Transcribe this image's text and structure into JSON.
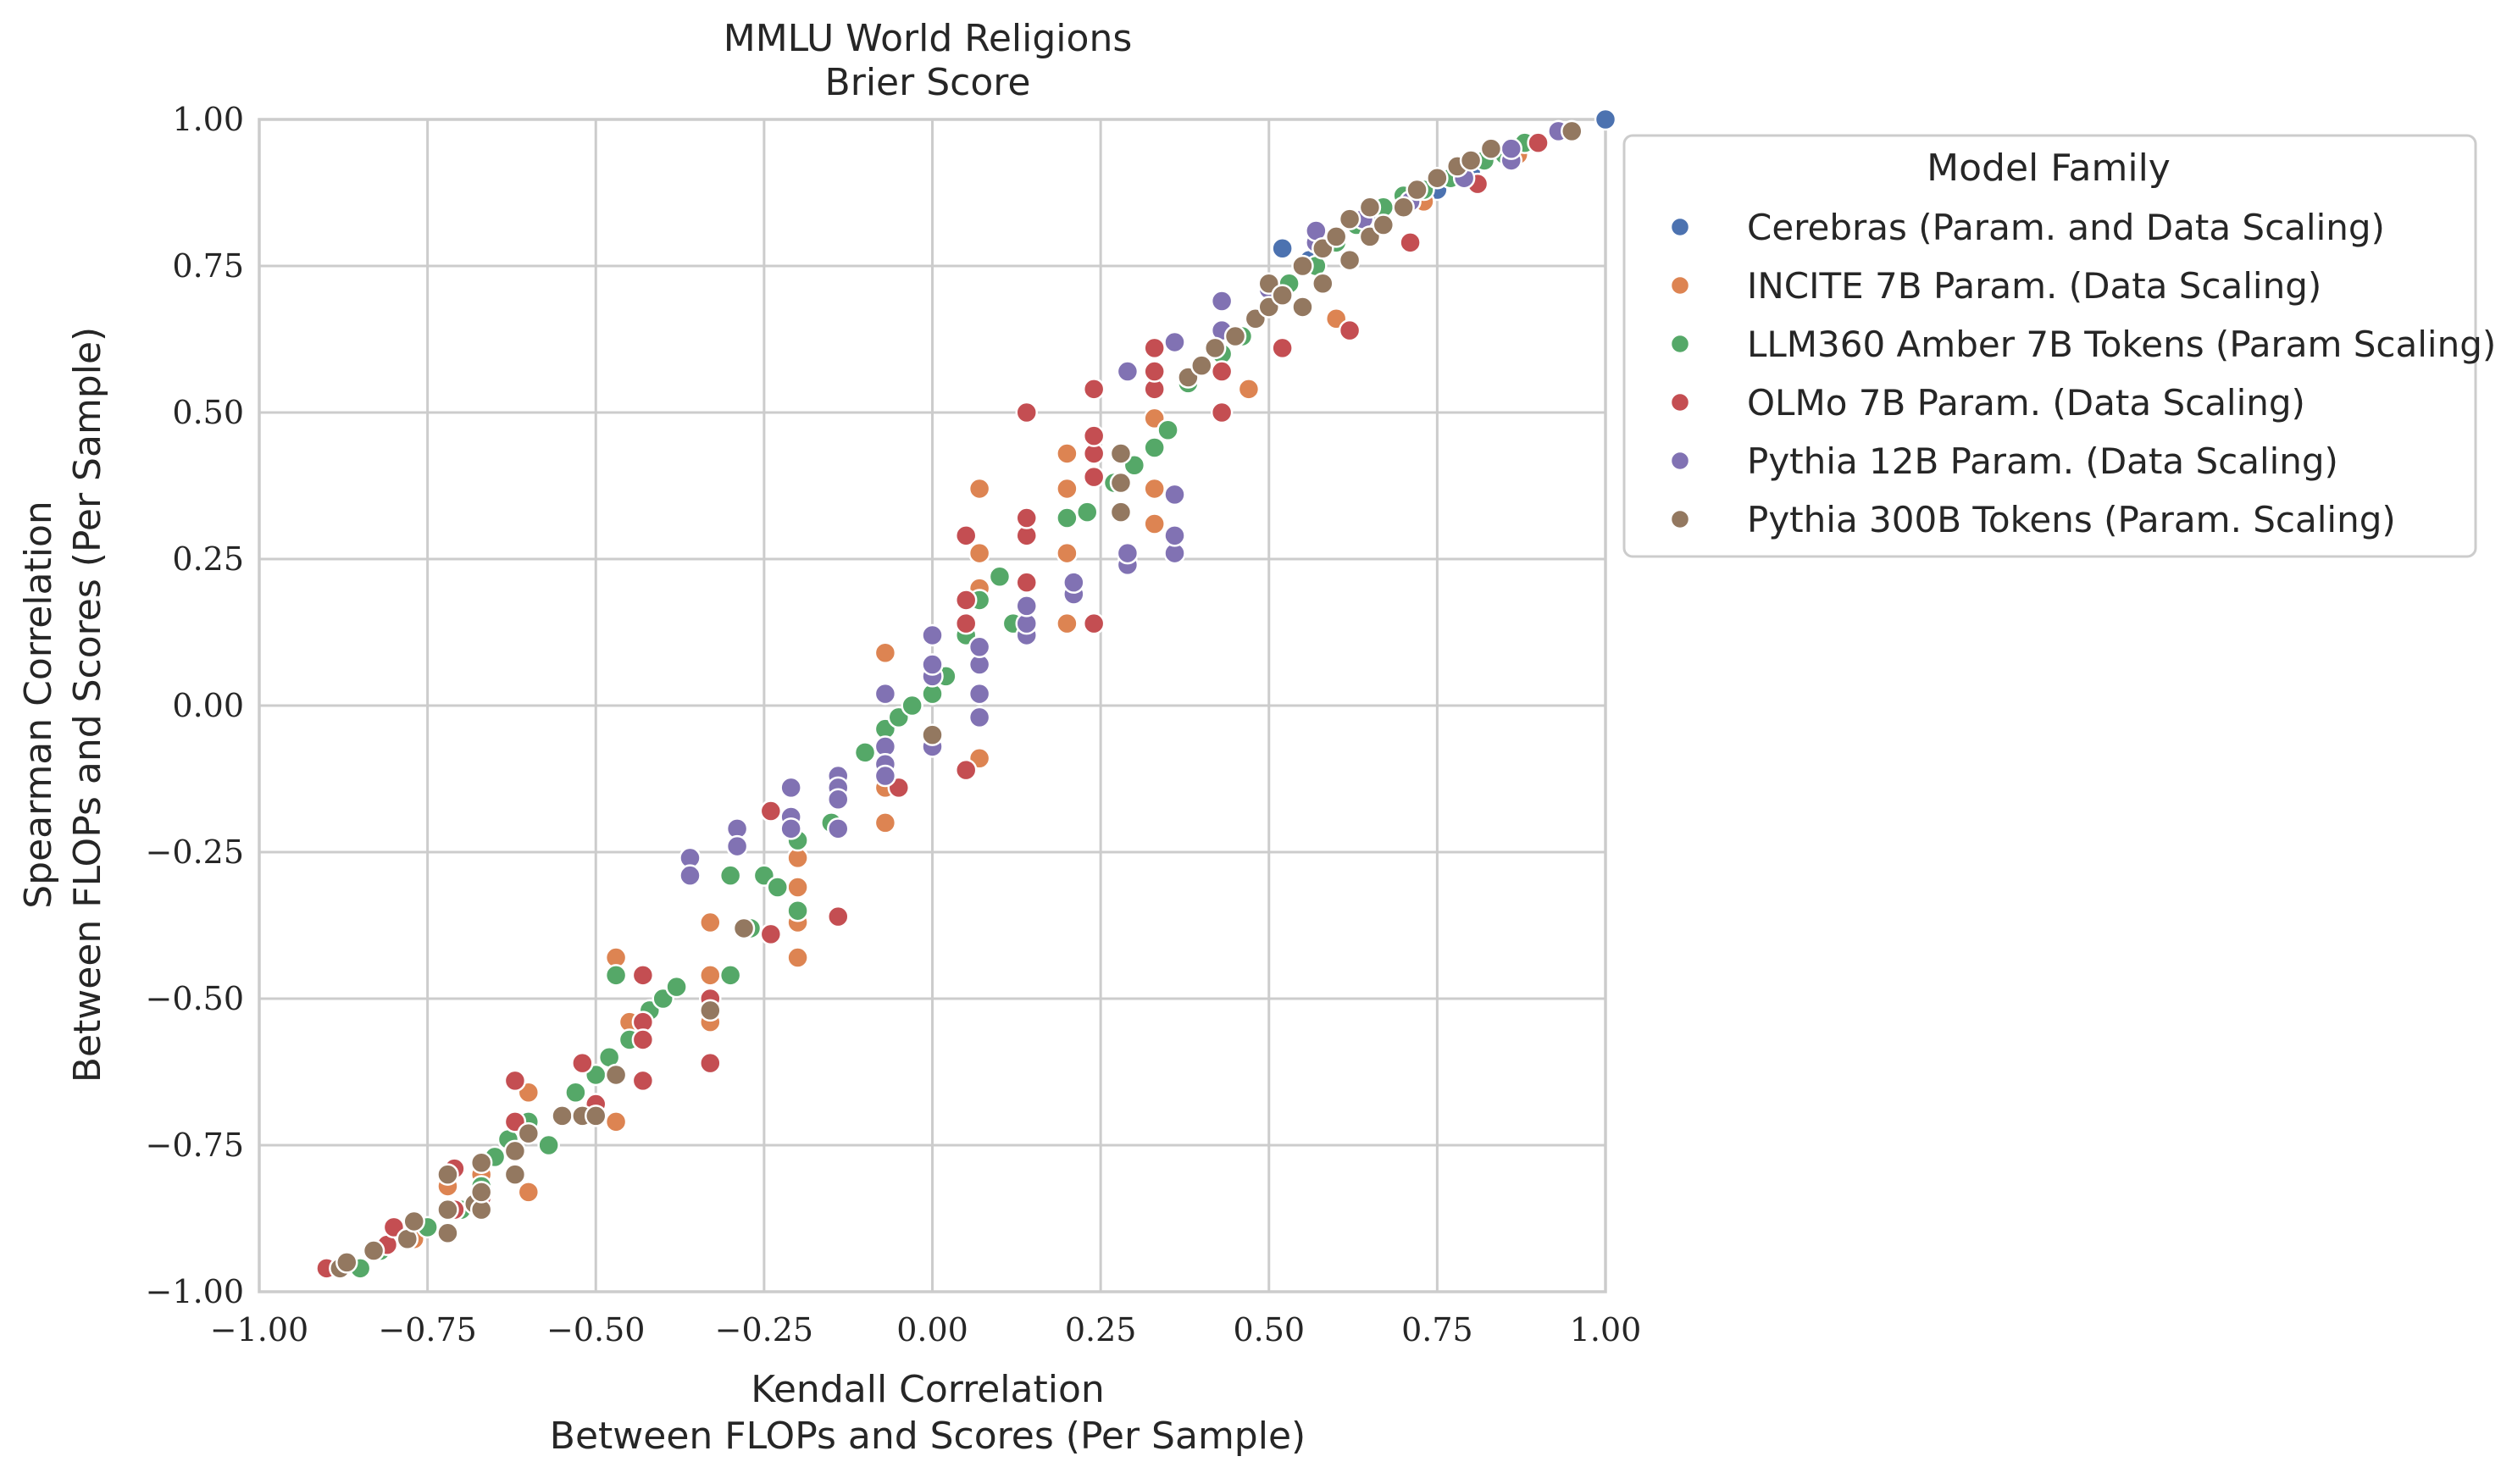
{
  "chart_data": {
    "type": "scatter",
    "title": "MMLU World Religions",
    "subtitle": "Brier Score",
    "xlabel": [
      "Kendall Correlation",
      "Between FLOPs and Scores (Per Sample)"
    ],
    "ylabel": [
      "Spearman Correlation",
      "Between FLOPs and Scores (Per Sample)"
    ],
    "xlim": [
      -1.0,
      1.0
    ],
    "ylim": [
      -1.0,
      1.0
    ],
    "x_ticks": [
      -1.0,
      -0.75,
      -0.5,
      -0.25,
      0.0,
      0.25,
      0.5,
      0.75,
      1.0
    ],
    "y_ticks": [
      -1.0,
      -0.75,
      -0.5,
      -0.25,
      0.0,
      0.25,
      0.5,
      0.75,
      1.0
    ],
    "x_tick_labels": [
      "−1.00",
      "−0.75",
      "−0.50",
      "−0.25",
      "0.00",
      "0.25",
      "0.50",
      "0.75",
      "1.00"
    ],
    "y_tick_labels": [
      "−1.00",
      "−0.75",
      "−0.50",
      "−0.25",
      "0.00",
      "0.25",
      "0.50",
      "0.75",
      "1.00"
    ],
    "grid": true,
    "legend": {
      "title": "Model Family",
      "placement": "outside-upper-right"
    },
    "series": [
      {
        "name": "Cerebras (Param. and Data Scaling)",
        "color": "#4c72b0",
        "points": [
          [
            0.52,
            0.78
          ],
          [
            0.56,
            0.76
          ],
          [
            0.6,
            0.8
          ],
          [
            0.65,
            0.83
          ],
          [
            0.7,
            0.86
          ],
          [
            0.75,
            0.88
          ],
          [
            0.8,
            0.91
          ],
          [
            1.0,
            1.0
          ]
        ]
      },
      {
        "name": "INCITE 7B Param. (Data Scaling)",
        "color": "#dd8452",
        "points": [
          [
            -0.77,
            -0.91
          ],
          [
            -0.72,
            -0.82
          ],
          [
            -0.67,
            -0.8
          ],
          [
            -0.62,
            -0.8
          ],
          [
            -0.6,
            -0.83
          ],
          [
            -0.6,
            -0.66
          ],
          [
            -0.47,
            -0.71
          ],
          [
            -0.47,
            -0.43
          ],
          [
            -0.45,
            -0.54
          ],
          [
            -0.33,
            -0.37
          ],
          [
            -0.33,
            -0.46
          ],
          [
            -0.33,
            -0.54
          ],
          [
            -0.2,
            -0.37
          ],
          [
            -0.2,
            -0.43
          ],
          [
            -0.2,
            -0.26
          ],
          [
            -0.2,
            -0.31
          ],
          [
            -0.07,
            -0.2
          ],
          [
            -0.07,
            -0.14
          ],
          [
            -0.07,
            0.09
          ],
          [
            0.07,
            -0.09
          ],
          [
            0.07,
            0.26
          ],
          [
            0.07,
            0.37
          ],
          [
            0.07,
            0.2
          ],
          [
            0.2,
            0.14
          ],
          [
            0.2,
            0.26
          ],
          [
            0.2,
            0.37
          ],
          [
            0.2,
            0.43
          ],
          [
            0.33,
            0.31
          ],
          [
            0.33,
            0.37
          ],
          [
            0.33,
            0.49
          ],
          [
            0.33,
            0.54
          ],
          [
            0.47,
            0.54
          ],
          [
            0.6,
            0.66
          ],
          [
            0.73,
            0.86
          ],
          [
            0.87,
            0.94
          ]
        ]
      },
      {
        "name": "LLM360 Amber 7B Tokens (Param Scaling)",
        "color": "#55a868",
        "points": [
          [
            -0.85,
            -0.96
          ],
          [
            -0.82,
            -0.93
          ],
          [
            -0.75,
            -0.89
          ],
          [
            -0.7,
            -0.86
          ],
          [
            -0.67,
            -0.82
          ],
          [
            -0.65,
            -0.77
          ],
          [
            -0.63,
            -0.74
          ],
          [
            -0.6,
            -0.71
          ],
          [
            -0.57,
            -0.75
          ],
          [
            -0.55,
            -0.7
          ],
          [
            -0.53,
            -0.66
          ],
          [
            -0.5,
            -0.63
          ],
          [
            -0.48,
            -0.6
          ],
          [
            -0.47,
            -0.46
          ],
          [
            -0.45,
            -0.57
          ],
          [
            -0.42,
            -0.52
          ],
          [
            -0.4,
            -0.5
          ],
          [
            -0.38,
            -0.48
          ],
          [
            -0.3,
            -0.29
          ],
          [
            -0.3,
            -0.46
          ],
          [
            -0.27,
            -0.38
          ],
          [
            -0.25,
            -0.29
          ],
          [
            -0.23,
            -0.31
          ],
          [
            -0.2,
            -0.35
          ],
          [
            -0.2,
            -0.23
          ],
          [
            -0.15,
            -0.2
          ],
          [
            -0.1,
            -0.08
          ],
          [
            -0.07,
            -0.04
          ],
          [
            -0.05,
            -0.02
          ],
          [
            -0.03,
            0.0
          ],
          [
            0.0,
            0.02
          ],
          [
            0.02,
            0.05
          ],
          [
            0.05,
            0.12
          ],
          [
            0.07,
            0.18
          ],
          [
            0.1,
            0.22
          ],
          [
            0.12,
            0.14
          ],
          [
            0.2,
            0.32
          ],
          [
            0.23,
            0.33
          ],
          [
            0.27,
            0.38
          ],
          [
            0.3,
            0.41
          ],
          [
            0.33,
            0.44
          ],
          [
            0.35,
            0.47
          ],
          [
            0.38,
            0.55
          ],
          [
            0.4,
            0.58
          ],
          [
            0.43,
            0.6
          ],
          [
            0.46,
            0.63
          ],
          [
            0.5,
            0.68
          ],
          [
            0.53,
            0.72
          ],
          [
            0.57,
            0.75
          ],
          [
            0.6,
            0.79
          ],
          [
            0.63,
            0.82
          ],
          [
            0.67,
            0.85
          ],
          [
            0.7,
            0.87
          ],
          [
            0.73,
            0.88
          ],
          [
            0.77,
            0.9
          ],
          [
            0.82,
            0.93
          ],
          [
            0.85,
            0.94
          ],
          [
            0.88,
            0.96
          ]
        ]
      },
      {
        "name": "OLMo 7B Param. (Data Scaling)",
        "color": "#c44e52",
        "points": [
          [
            -0.9,
            -0.96
          ],
          [
            -0.81,
            -0.92
          ],
          [
            -0.8,
            -0.89
          ],
          [
            -0.71,
            -0.79
          ],
          [
            -0.71,
            -0.86
          ],
          [
            -0.67,
            -0.84
          ],
          [
            -0.62,
            -0.64
          ],
          [
            -0.62,
            -0.71
          ],
          [
            -0.52,
            -0.61
          ],
          [
            -0.5,
            -0.68
          ],
          [
            -0.43,
            -0.46
          ],
          [
            -0.43,
            -0.54
          ],
          [
            -0.43,
            -0.57
          ],
          [
            -0.43,
            -0.64
          ],
          [
            -0.33,
            -0.5
          ],
          [
            -0.33,
            -0.61
          ],
          [
            -0.24,
            -0.18
          ],
          [
            -0.24,
            -0.39
          ],
          [
            -0.14,
            -0.36
          ],
          [
            -0.05,
            -0.14
          ],
          [
            0.05,
            -0.11
          ],
          [
            0.05,
            0.14
          ],
          [
            0.05,
            0.18
          ],
          [
            0.05,
            0.29
          ],
          [
            0.14,
            0.21
          ],
          [
            0.14,
            0.29
          ],
          [
            0.14,
            0.32
          ],
          [
            0.14,
            0.5
          ],
          [
            0.24,
            0.14
          ],
          [
            0.24,
            0.39
          ],
          [
            0.24,
            0.43
          ],
          [
            0.24,
            0.46
          ],
          [
            0.24,
            0.54
          ],
          [
            0.33,
            0.54
          ],
          [
            0.33,
            0.57
          ],
          [
            0.33,
            0.61
          ],
          [
            0.43,
            0.5
          ],
          [
            0.43,
            0.57
          ],
          [
            0.52,
            0.61
          ],
          [
            0.62,
            0.64
          ],
          [
            0.71,
            0.79
          ],
          [
            0.81,
            0.89
          ],
          [
            0.9,
            0.96
          ]
        ]
      },
      {
        "name": "Pythia 12B Param. (Data Scaling)",
        "color": "#8172b3",
        "points": [
          [
            -0.36,
            -0.26
          ],
          [
            -0.36,
            -0.29
          ],
          [
            -0.29,
            -0.21
          ],
          [
            -0.29,
            -0.24
          ],
          [
            -0.21,
            -0.14
          ],
          [
            -0.21,
            -0.19
          ],
          [
            -0.21,
            -0.21
          ],
          [
            -0.14,
            -0.12
          ],
          [
            -0.14,
            -0.14
          ],
          [
            -0.14,
            -0.16
          ],
          [
            -0.14,
            -0.21
          ],
          [
            -0.07,
            0.02
          ],
          [
            -0.07,
            -0.07
          ],
          [
            -0.07,
            -0.1
          ],
          [
            -0.07,
            -0.12
          ],
          [
            0.0,
            0.05
          ],
          [
            0.0,
            0.07
          ],
          [
            0.0,
            0.12
          ],
          [
            0.0,
            -0.07
          ],
          [
            0.07,
            0.02
          ],
          [
            0.07,
            0.07
          ],
          [
            0.07,
            0.1
          ],
          [
            0.07,
            -0.02
          ],
          [
            0.14,
            0.12
          ],
          [
            0.14,
            0.14
          ],
          [
            0.14,
            0.17
          ],
          [
            0.21,
            0.19
          ],
          [
            0.21,
            0.21
          ],
          [
            0.29,
            0.24
          ],
          [
            0.29,
            0.26
          ],
          [
            0.29,
            0.57
          ],
          [
            0.36,
            0.26
          ],
          [
            0.36,
            0.29
          ],
          [
            0.36,
            0.36
          ],
          [
            0.36,
            0.62
          ],
          [
            0.43,
            0.64
          ],
          [
            0.43,
            0.69
          ],
          [
            0.5,
            0.71
          ],
          [
            0.57,
            0.79
          ],
          [
            0.57,
            0.81
          ],
          [
            0.64,
            0.83
          ],
          [
            0.71,
            0.86
          ],
          [
            0.79,
            0.9
          ],
          [
            0.86,
            0.93
          ],
          [
            0.86,
            0.95
          ],
          [
            0.93,
            0.98
          ]
        ]
      },
      {
        "name": "Pythia 300B Tokens (Param. Scaling)",
        "color": "#937860",
        "points": [
          [
            -0.88,
            -0.96
          ],
          [
            -0.87,
            -0.95
          ],
          [
            -0.83,
            -0.93
          ],
          [
            -0.78,
            -0.91
          ],
          [
            -0.77,
            -0.88
          ],
          [
            -0.72,
            -0.9
          ],
          [
            -0.72,
            -0.86
          ],
          [
            -0.72,
            -0.8
          ],
          [
            -0.68,
            -0.85
          ],
          [
            -0.67,
            -0.86
          ],
          [
            -0.67,
            -0.83
          ],
          [
            -0.67,
            -0.78
          ],
          [
            -0.62,
            -0.8
          ],
          [
            -0.62,
            -0.76
          ],
          [
            -0.6,
            -0.73
          ],
          [
            -0.55,
            -0.7
          ],
          [
            -0.52,
            -0.7
          ],
          [
            -0.5,
            -0.7
          ],
          [
            -0.47,
            -0.63
          ],
          [
            -0.33,
            -0.52
          ],
          [
            -0.28,
            -0.38
          ],
          [
            0.0,
            -0.05
          ],
          [
            0.28,
            0.33
          ],
          [
            0.28,
            0.38
          ],
          [
            0.28,
            0.43
          ],
          [
            0.38,
            0.56
          ],
          [
            0.4,
            0.58
          ],
          [
            0.42,
            0.61
          ],
          [
            0.45,
            0.63
          ],
          [
            0.48,
            0.66
          ],
          [
            0.5,
            0.68
          ],
          [
            0.5,
            0.72
          ],
          [
            0.52,
            0.7
          ],
          [
            0.55,
            0.68
          ],
          [
            0.55,
            0.75
          ],
          [
            0.58,
            0.72
          ],
          [
            0.58,
            0.78
          ],
          [
            0.6,
            0.8
          ],
          [
            0.62,
            0.76
          ],
          [
            0.62,
            0.83
          ],
          [
            0.65,
            0.8
          ],
          [
            0.65,
            0.85
          ],
          [
            0.67,
            0.82
          ],
          [
            0.7,
            0.85
          ],
          [
            0.72,
            0.88
          ],
          [
            0.75,
            0.9
          ],
          [
            0.78,
            0.92
          ],
          [
            0.8,
            0.93
          ],
          [
            0.83,
            0.95
          ],
          [
            0.95,
            0.98
          ]
        ]
      }
    ]
  }
}
